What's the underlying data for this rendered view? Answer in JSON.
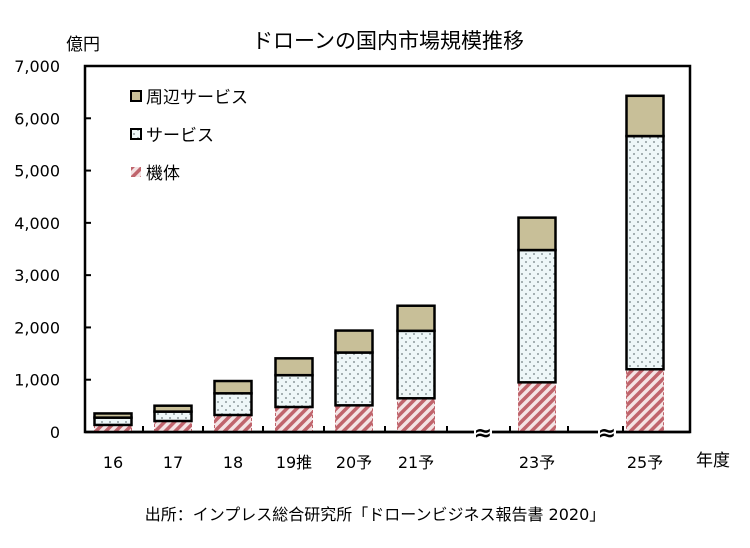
{
  "chart_data": {
    "type": "bar",
    "stacked": true,
    "title": "ドローンの国内市場規模推移",
    "ylabel": "億円",
    "xlabel": "年度",
    "ylim": [
      0,
      7000
    ],
    "yticks": [
      "0",
      "1,000",
      "2,000",
      "3,000",
      "4,000",
      "5,000",
      "6,000",
      "7,000"
    ],
    "yticks_values": [
      0,
      1000,
      2000,
      3000,
      4000,
      5000,
      6000,
      7000
    ],
    "categories": [
      "16",
      "17",
      "18",
      "19推",
      "20予",
      "21予",
      "23予",
      "25予"
    ],
    "axis_breaks_before": [
      "23予",
      "25予"
    ],
    "break_symbol": "≈",
    "series": [
      {
        "name": "機体",
        "values": [
          135,
          210,
          325,
          478,
          510,
          645,
          950,
          1200
        ],
        "color": "#c98a8f",
        "pattern": "hatch"
      },
      {
        "name": "サービス",
        "values": [
          140,
          180,
          415,
          609,
          1010,
          1290,
          2530,
          4460
        ],
        "color": "#eef6f7",
        "pattern": "dots"
      },
      {
        "name": "周辺サービス",
        "values": [
          80,
          113,
          235,
          322,
          420,
          480,
          620,
          770
        ],
        "color": "#c8bf98",
        "pattern": "solid"
      }
    ],
    "legend": {
      "placement": "top-left",
      "order": [
        "周辺サービス",
        "サービス",
        "機体"
      ]
    },
    "grid": false,
    "source": "出所：インプレス総合研究所「ドローンビジネス報告書 2020」"
  }
}
